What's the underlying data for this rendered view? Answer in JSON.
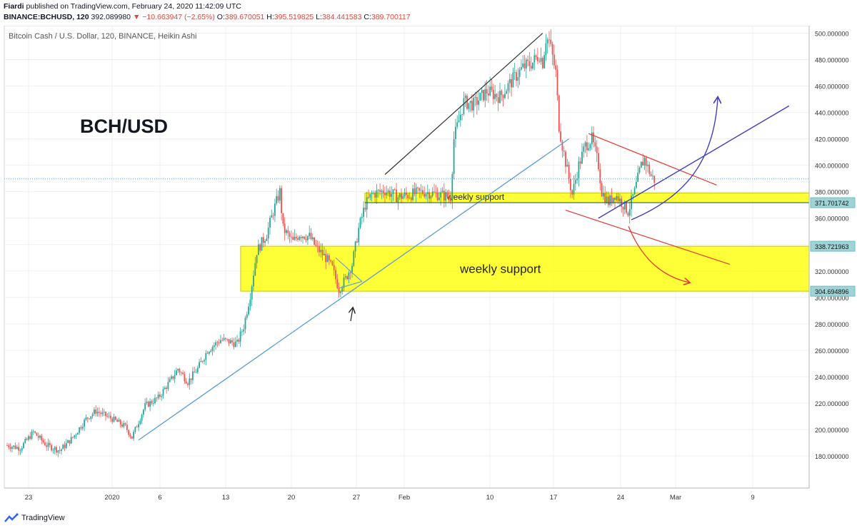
{
  "header": {
    "author": "Fiardi",
    "published": "published on TradingView.com, February 24, 2020 11:42:09 UTC",
    "symbol": "BINANCE:BCHUSD, 120",
    "last": "392.089980",
    "change_arrow": "▼",
    "change": "−10.663947 (−2.65%)",
    "o_label": "O:",
    "o_value": "389.670051",
    "h_label": "H:",
    "h_value": "395.519825",
    "l_label": "L:",
    "l_value": "384.441583",
    "c_label": "C:",
    "c_value": "389.700117"
  },
  "footer": {
    "logo_text": "TradingView",
    "logo_icon": "tradingview-logo-icon"
  },
  "colors": {
    "up": "#26a69a",
    "down": "#ef5350",
    "zone": "#ffff00",
    "trend": "#5b9bd5",
    "channel_red": "#e53935",
    "blue_arrow": "#3f3fbf",
    "price_line": "#5b9bd5"
  },
  "chart_data": {
    "type": "candlestick",
    "title": "Bitcoin Cash / U.S. Dollar, 120, BINANCE, Heikin Ashi",
    "watermark_label": "BCH/USD",
    "ylim": [
      160,
      510
    ],
    "y_ticks": [
      180,
      200,
      220,
      240,
      260,
      280,
      300,
      320,
      340,
      360,
      380,
      400,
      420,
      440,
      460,
      480,
      500
    ],
    "y_tick_format": "0.000000",
    "x_ticks": [
      "23",
      "2020",
      "6",
      "13",
      "20",
      "27",
      "Feb",
      "10",
      "17",
      "24",
      "Mar",
      "9"
    ],
    "price_labels": [
      "371.701742",
      "338.721963",
      "304.694896"
    ],
    "current_price": 389.7,
    "series_path": [
      [
        0,
        188
      ],
      [
        4,
        186
      ],
      [
        8,
        198
      ],
      [
        12,
        188
      ],
      [
        16,
        184
      ],
      [
        20,
        194
      ],
      [
        24,
        208
      ],
      [
        27,
        214
      ],
      [
        32,
        208
      ],
      [
        36,
        202
      ],
      [
        38,
        194
      ],
      [
        42,
        218
      ],
      [
        46,
        224
      ],
      [
        50,
        238
      ],
      [
        52,
        246
      ],
      [
        55,
        236
      ],
      [
        58,
        246
      ],
      [
        61,
        260
      ],
      [
        65,
        268
      ],
      [
        70,
        265
      ],
      [
        72,
        278
      ],
      [
        74,
        302
      ],
      [
        76,
        335
      ],
      [
        79,
        348
      ],
      [
        81,
        365
      ],
      [
        83,
        380
      ],
      [
        84,
        352
      ],
      [
        87,
        342
      ],
      [
        89,
        348
      ],
      [
        92,
        346
      ],
      [
        94,
        338
      ],
      [
        97,
        330
      ],
      [
        99,
        322
      ],
      [
        101,
        306
      ],
      [
        103,
        314
      ],
      [
        105,
        325
      ],
      [
        107,
        352
      ],
      [
        109,
        370
      ],
      [
        111,
        378
      ],
      [
        115,
        381
      ],
      [
        119,
        376
      ],
      [
        123,
        378
      ],
      [
        127,
        380
      ],
      [
        131,
        378
      ],
      [
        135,
        376
      ],
      [
        136,
        420
      ],
      [
        139,
        448
      ],
      [
        142,
        446
      ],
      [
        146,
        456
      ],
      [
        150,
        452
      ],
      [
        154,
        465
      ],
      [
        157,
        474
      ],
      [
        160,
        478
      ],
      [
        162,
        484
      ],
      [
        163,
        478
      ],
      [
        164,
        496
      ],
      [
        165,
        494
      ],
      [
        167,
        470
      ],
      [
        168,
        430
      ],
      [
        169,
        415
      ],
      [
        171,
        390
      ],
      [
        172,
        378
      ],
      [
        174,
        400
      ],
      [
        176,
        415
      ],
      [
        178,
        420
      ],
      [
        180,
        400
      ],
      [
        181,
        380
      ],
      [
        183,
        372
      ],
      [
        185,
        378
      ],
      [
        187,
        372
      ],
      [
        189,
        365
      ],
      [
        191,
        380
      ],
      [
        193,
        400
      ],
      [
        194,
        405
      ],
      [
        196,
        392
      ],
      [
        197,
        389
      ]
    ],
    "zones": [
      {
        "label": "weekly support",
        "low": 371.7,
        "high": 379
      },
      {
        "label": "weekly support",
        "low": 304.69,
        "high": 338.72
      }
    ],
    "trendlines": [
      {
        "kind": "uptrend-support",
        "from": [
          40,
          192
        ],
        "to": [
          171,
          420
        ]
      },
      {
        "kind": "upper-channel",
        "from": [
          115,
          393
        ],
        "to": [
          163,
          500
        ]
      },
      {
        "kind": "falling-wedge-top",
        "from": [
          177,
          424
        ],
        "to": [
          216,
          385
        ]
      },
      {
        "kind": "falling-wedge-bottom",
        "from": [
          170,
          366
        ],
        "to": [
          220,
          325
        ]
      },
      {
        "kind": "rising-line",
        "from": [
          180,
          360
        ],
        "to": [
          238,
          445
        ]
      },
      {
        "kind": "small-wedge-up",
        "from": [
          100,
          330
        ],
        "to": [
          108,
          312
        ]
      },
      {
        "kind": "small-wedge-down",
        "from": [
          101,
          307
        ],
        "to": [
          108,
          312
        ]
      }
    ]
  }
}
